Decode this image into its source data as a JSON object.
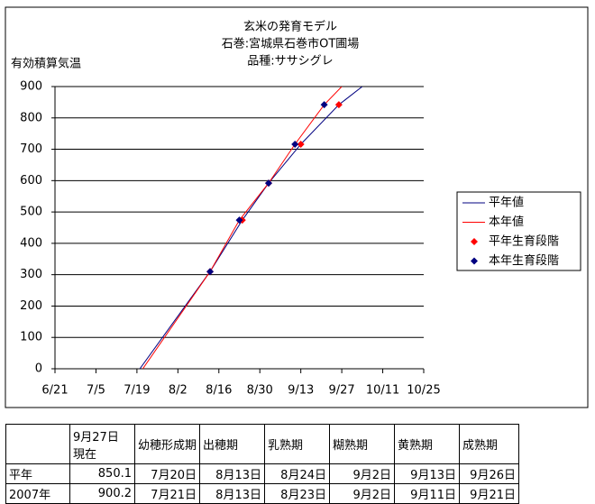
{
  "chart_data": {
    "type": "line",
    "title": [
      "玄米の発育モデル",
      "石巻:宮城県石巻市OT圃場",
      "品種:ササシグレ"
    ],
    "y_label": "有効積算気温",
    "xlim": [
      "6/21",
      "10/25"
    ],
    "xticks": [
      "6/21",
      "7/5",
      "7/19",
      "8/2",
      "8/16",
      "8/30",
      "9/13",
      "9/27",
      "10/11",
      "10/25"
    ],
    "ylim": [
      0,
      900
    ],
    "yticks": [
      0,
      100,
      200,
      300,
      400,
      500,
      600,
      700,
      800,
      900
    ],
    "grid": true,
    "legend": "right",
    "series": [
      {
        "name": "平年値",
        "kind": "line",
        "color": "#000080",
        "x": [
          "7/20",
          "8/13",
          "8/24",
          "9/2",
          "9/13",
          "9/26",
          "10/4"
        ],
        "values": [
          0,
          310,
          474,
          592,
          716,
          842,
          900
        ]
      },
      {
        "name": "本年値",
        "kind": "line",
        "color": "#ff0000",
        "x": [
          "7/21",
          "8/13",
          "8/23",
          "9/2",
          "9/11",
          "9/21",
          "9/27"
        ],
        "values": [
          0,
          310,
          474,
          592,
          716,
          842,
          900
        ]
      },
      {
        "name": "平年生育段階",
        "kind": "marker",
        "color": "#ff0000",
        "x": [
          "8/13",
          "8/24",
          "9/2",
          "9/13",
          "9/26"
        ],
        "values": [
          310,
          474,
          592,
          716,
          842
        ]
      },
      {
        "name": "本年生育段階",
        "kind": "marker",
        "color": "#000080",
        "x": [
          "8/13",
          "8/23",
          "9/2",
          "9/11",
          "9/21"
        ],
        "values": [
          310,
          474,
          592,
          716,
          842
        ]
      }
    ]
  },
  "table": {
    "header": [
      "9月27日\n現在",
      "幼穂形成期",
      "出穂期",
      "乳熟期",
      "糊熟期",
      "黄熟期",
      "成熟期"
    ],
    "rows": [
      [
        "平年",
        "850.1",
        "7月20日",
        "8月13日",
        "8月24日",
        "9月2日",
        "9月13日",
        "9月26日"
      ],
      [
        "2007年",
        "900.2",
        "7月21日",
        "8月13日",
        "8月23日",
        "9月2日",
        "9月11日",
        "9月21日"
      ]
    ]
  }
}
